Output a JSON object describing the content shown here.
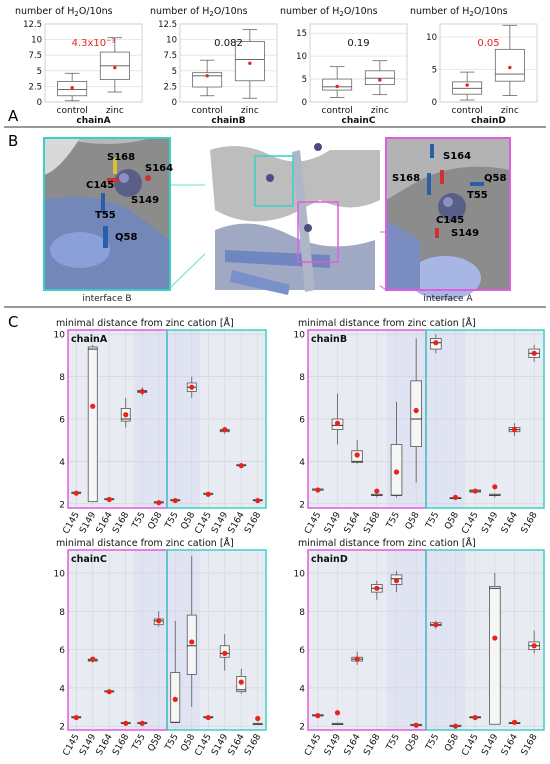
{
  "panel_labels": {
    "A": "A",
    "B": "B",
    "C": "C"
  },
  "panel_b": {
    "caption_left": "interface B",
    "caption_right": "interface A",
    "left_labels": [
      "S168",
      "S164",
      "C145",
      "S149",
      "T55",
      "Q58"
    ],
    "right_labels": [
      "S164",
      "S168",
      "Q58",
      "T55",
      "C145",
      "S149"
    ]
  },
  "chart_data": [
    {
      "type": "box",
      "panel": "A",
      "title": "number of H₂O/10ns",
      "xlabel": "chainA",
      "ylim": [
        0,
        12.5
      ],
      "yticks": [
        "0",
        "2.5",
        "5",
        "7.5",
        "10",
        "12.5"
      ],
      "ytick_values": [
        0,
        2.5,
        5,
        7.5,
        10,
        12.5
      ],
      "categories": [
        "control",
        "zinc"
      ],
      "annotation": "4.3x10⁻³",
      "annotation_color": "#e8231c",
      "boxes": [
        {
          "min": 0.2,
          "q1": 1.0,
          "median": 2.0,
          "q3": 3.3,
          "max": 4.6,
          "mean": 2.3
        },
        {
          "min": 1.6,
          "q1": 3.6,
          "median": 5.8,
          "q3": 8.0,
          "max": 10.3,
          "mean": 5.5
        }
      ]
    },
    {
      "type": "box",
      "panel": "A",
      "title": "number of H₂O/10ns",
      "xlabel": "chainB",
      "ylim": [
        0,
        12.5
      ],
      "yticks": [
        "0",
        "2.5",
        "5",
        "7.5",
        "10",
        "12.5"
      ],
      "ytick_values": [
        0,
        2.5,
        5,
        7.5,
        10,
        12.5
      ],
      "categories": [
        "control",
        "zinc"
      ],
      "annotation": "0.082",
      "annotation_color": "#111111",
      "boxes": [
        {
          "min": 1.0,
          "q1": 2.4,
          "median": 4.2,
          "q3": 4.7,
          "max": 6.7,
          "mean": 4.2
        },
        {
          "min": 0.6,
          "q1": 3.4,
          "median": 6.8,
          "q3": 9.7,
          "max": 11.6,
          "mean": 6.2
        }
      ]
    },
    {
      "type": "box",
      "panel": "A",
      "title": "number of H₂O/10ns",
      "xlabel": "chainC",
      "ylim": [
        0,
        17
      ],
      "yticks": [
        "0",
        "5",
        "10",
        "15"
      ],
      "ytick_values": [
        0,
        5,
        10,
        15
      ],
      "categories": [
        "control",
        "zinc"
      ],
      "annotation": "0.19",
      "annotation_color": "#111111",
      "boxes": [
        {
          "min": 1.0,
          "q1": 2.6,
          "median": 3.3,
          "q3": 5.0,
          "max": 7.7,
          "mean": 3.4
        },
        {
          "min": 1.6,
          "q1": 3.8,
          "median": 5.2,
          "q3": 6.8,
          "max": 9.0,
          "mean": 4.8
        }
      ]
    },
    {
      "type": "box",
      "panel": "A",
      "title": "number of H₂O/10ns",
      "xlabel": "chainD",
      "ylim": [
        0,
        12
      ],
      "yticks": [
        "0",
        "5",
        "10"
      ],
      "ytick_values": [
        0,
        5,
        10
      ],
      "categories": [
        "control",
        "zinc"
      ],
      "annotation": "0.05",
      "annotation_color": "#e8231c",
      "boxes": [
        {
          "min": 0.3,
          "q1": 1.2,
          "median": 2.1,
          "q3": 3.1,
          "max": 4.6,
          "mean": 2.6
        },
        {
          "min": 1.0,
          "q1": 3.2,
          "median": 4.3,
          "q3": 8.1,
          "max": 11.8,
          "mean": 5.3
        }
      ]
    },
    {
      "type": "box",
      "panel": "C",
      "title": "minimal distance from zinc cation [Å]",
      "chain": "chainA",
      "ylim": [
        1.8,
        10.2
      ],
      "yticks": [
        "2",
        "4",
        "6",
        "8",
        "10"
      ],
      "ytick_values": [
        2,
        4,
        6,
        8,
        10
      ],
      "categories": [
        "C145",
        "S149",
        "S164",
        "S168",
        "T55",
        "Q58",
        "T55",
        "Q58",
        "C145",
        "S149",
        "S164",
        "S168"
      ],
      "interface_B_count": 6,
      "boxes": [
        {
          "min": 2.5,
          "q1": 2.5,
          "median": 2.5,
          "q3": 2.55,
          "max": 2.6,
          "mean": 2.5
        },
        {
          "min": 2.1,
          "q1": 2.1,
          "median": 9.3,
          "q3": 9.4,
          "max": 9.5,
          "mean": 6.6
        },
        {
          "min": 2.15,
          "q1": 2.2,
          "median": 2.2,
          "q3": 2.25,
          "max": 2.3,
          "mean": 2.2
        },
        {
          "min": 5.6,
          "q1": 5.9,
          "median": 6.0,
          "q3": 6.5,
          "max": 7.0,
          "mean": 6.2
        },
        {
          "min": 7.1,
          "q1": 7.25,
          "median": 7.3,
          "q3": 7.35,
          "max": 7.5,
          "mean": 7.3
        },
        {
          "min": 2.0,
          "q1": 2.05,
          "median": 2.05,
          "q3": 2.1,
          "max": 2.1,
          "mean": 2.05
        },
        {
          "min": 2.1,
          "q1": 2.15,
          "median": 2.15,
          "q3": 2.2,
          "max": 2.2,
          "mean": 2.15
        },
        {
          "min": 7.0,
          "q1": 7.3,
          "median": 7.5,
          "q3": 7.7,
          "max": 8.0,
          "mean": 7.5
        },
        {
          "min": 2.4,
          "q1": 2.45,
          "median": 2.45,
          "q3": 2.5,
          "max": 2.5,
          "mean": 2.45
        },
        {
          "min": 5.3,
          "q1": 5.4,
          "median": 5.45,
          "q3": 5.5,
          "max": 5.6,
          "mean": 5.5
        },
        {
          "min": 3.7,
          "q1": 3.8,
          "median": 3.8,
          "q3": 3.85,
          "max": 3.9,
          "mean": 3.8
        },
        {
          "min": 2.1,
          "q1": 2.15,
          "median": 2.15,
          "q3": 2.2,
          "max": 2.2,
          "mean": 2.15
        }
      ]
    },
    {
      "type": "box",
      "panel": "C",
      "title": "minimal distance from zinc cation [Å]",
      "chain": "chainB",
      "ylim": [
        1.8,
        10.2
      ],
      "yticks": [
        "2",
        "4",
        "6",
        "8",
        "10"
      ],
      "ytick_values": [
        2,
        4,
        6,
        8,
        10
      ],
      "categories": [
        "C145",
        "S149",
        "S164",
        "S168",
        "T55",
        "Q58",
        "T55",
        "Q58",
        "C145",
        "S149",
        "S164",
        "S168"
      ],
      "interface_B_count": 6,
      "boxes": [
        {
          "min": 2.6,
          "q1": 2.65,
          "median": 2.65,
          "q3": 2.7,
          "max": 2.7,
          "mean": 2.65
        },
        {
          "min": 4.8,
          "q1": 5.5,
          "median": 5.7,
          "q3": 6.0,
          "max": 7.2,
          "mean": 5.8
        },
        {
          "min": 3.9,
          "q1": 3.95,
          "median": 4.0,
          "q3": 4.5,
          "max": 5.0,
          "mean": 4.3
        },
        {
          "min": 2.3,
          "q1": 2.4,
          "median": 2.4,
          "q3": 2.45,
          "max": 2.5,
          "mean": 2.6
        },
        {
          "min": 2.3,
          "q1": 2.4,
          "median": 2.4,
          "q3": 4.8,
          "max": 6.8,
          "mean": 3.5
        },
        {
          "min": 3.0,
          "q1": 4.7,
          "median": 6.0,
          "q3": 7.8,
          "max": 9.8,
          "mean": 6.4
        },
        {
          "min": 9.1,
          "q1": 9.3,
          "median": 9.6,
          "q3": 9.8,
          "max": 10.0,
          "mean": 9.6
        },
        {
          "min": 2.2,
          "q1": 2.25,
          "median": 2.25,
          "q3": 2.3,
          "max": 2.3,
          "mean": 2.3
        },
        {
          "min": 2.5,
          "q1": 2.55,
          "median": 2.6,
          "q3": 2.65,
          "max": 2.7,
          "mean": 2.6
        },
        {
          "min": 2.3,
          "q1": 2.4,
          "median": 2.4,
          "q3": 2.45,
          "max": 2.5,
          "mean": 2.8
        },
        {
          "min": 5.2,
          "q1": 5.4,
          "median": 5.5,
          "q3": 5.6,
          "max": 5.8,
          "mean": 5.5
        },
        {
          "min": 8.7,
          "q1": 8.9,
          "median": 9.1,
          "q3": 9.3,
          "max": 9.5,
          "mean": 9.1
        }
      ]
    },
    {
      "type": "box",
      "panel": "C",
      "title": "minimal distance from zinc cation [Å]",
      "chain": "chainC",
      "ylim": [
        1.8,
        11.2
      ],
      "yticks": [
        "2",
        "4",
        "6",
        "8",
        "10"
      ],
      "ytick_values": [
        2,
        4,
        6,
        8,
        10
      ],
      "categories": [
        "C145",
        "S149",
        "S164",
        "S168",
        "T55",
        "Q58",
        "T55",
        "Q58",
        "C145",
        "S149",
        "S164",
        "S168"
      ],
      "interface_B_count": 6,
      "boxes": [
        {
          "min": 2.4,
          "q1": 2.45,
          "median": 2.45,
          "q3": 2.5,
          "max": 2.5,
          "mean": 2.45
        },
        {
          "min": 5.3,
          "q1": 5.4,
          "median": 5.45,
          "q3": 5.5,
          "max": 5.6,
          "mean": 5.5
        },
        {
          "min": 3.7,
          "q1": 3.8,
          "median": 3.8,
          "q3": 3.85,
          "max": 3.9,
          "mean": 3.8
        },
        {
          "min": 2.1,
          "q1": 2.15,
          "median": 2.15,
          "q3": 2.2,
          "max": 2.2,
          "mean": 2.15
        },
        {
          "min": 2.1,
          "q1": 2.15,
          "median": 2.15,
          "q3": 2.2,
          "max": 2.2,
          "mean": 2.15
        },
        {
          "min": 7.2,
          "q1": 7.3,
          "median": 7.5,
          "q3": 7.6,
          "max": 8.0,
          "mean": 7.5
        },
        {
          "min": 2.2,
          "q1": 2.2,
          "median": 2.2,
          "q3": 4.8,
          "max": 7.5,
          "mean": 3.4
        },
        {
          "min": 3.0,
          "q1": 4.7,
          "median": 6.2,
          "q3": 7.8,
          "max": 10.9,
          "mean": 6.4
        },
        {
          "min": 2.4,
          "q1": 2.45,
          "median": 2.45,
          "q3": 2.5,
          "max": 2.5,
          "mean": 2.45
        },
        {
          "min": 4.9,
          "q1": 5.6,
          "median": 5.8,
          "q3": 6.2,
          "max": 6.8,
          "mean": 5.8
        },
        {
          "min": 3.7,
          "q1": 3.8,
          "median": 3.9,
          "q3": 4.6,
          "max": 5.0,
          "mean": 4.3
        },
        {
          "min": 2.1,
          "q1": 2.1,
          "median": 2.1,
          "q3": 2.15,
          "max": 2.2,
          "mean": 2.4
        }
      ]
    },
    {
      "type": "box",
      "panel": "C",
      "title": "minimal distance from zinc cation [Å]",
      "chain": "chainD",
      "ylim": [
        1.8,
        11.2
      ],
      "yticks": [
        "2",
        "4",
        "6",
        "8",
        "10"
      ],
      "ytick_values": [
        2,
        4,
        6,
        8,
        10
      ],
      "categories": [
        "C145",
        "S149",
        "S164",
        "S168",
        "T55",
        "Q58",
        "T55",
        "Q58",
        "C145",
        "S149",
        "S164",
        "S168"
      ],
      "interface_B_count": 6,
      "boxes": [
        {
          "min": 2.5,
          "q1": 2.55,
          "median": 2.55,
          "q3": 2.6,
          "max": 2.6,
          "mean": 2.55
        },
        {
          "min": 2.1,
          "q1": 2.1,
          "median": 2.1,
          "q3": 2.15,
          "max": 2.2,
          "mean": 2.7
        },
        {
          "min": 5.2,
          "q1": 5.4,
          "median": 5.5,
          "q3": 5.6,
          "max": 5.9,
          "mean": 5.5
        },
        {
          "min": 8.6,
          "q1": 9.0,
          "median": 9.2,
          "q3": 9.4,
          "max": 9.6,
          "mean": 9.2
        },
        {
          "min": 9.0,
          "q1": 9.4,
          "median": 9.7,
          "q3": 9.9,
          "max": 10.1,
          "mean": 9.6
        },
        {
          "min": 2.0,
          "q1": 2.05,
          "median": 2.05,
          "q3": 2.1,
          "max": 2.1,
          "mean": 2.05
        },
        {
          "min": 7.1,
          "q1": 7.25,
          "median": 7.3,
          "q3": 7.4,
          "max": 7.5,
          "mean": 7.3
        },
        {
          "min": 2.0,
          "q1": 2.0,
          "median": 2.0,
          "q3": 2.05,
          "max": 2.1,
          "mean": 2.0
        },
        {
          "min": 2.4,
          "q1": 2.45,
          "median": 2.45,
          "q3": 2.5,
          "max": 2.5,
          "mean": 2.45
        },
        {
          "min": 2.1,
          "q1": 2.1,
          "median": 9.2,
          "q3": 9.3,
          "max": 10.0,
          "mean": 6.6
        },
        {
          "min": 2.1,
          "q1": 2.15,
          "median": 2.15,
          "q3": 2.2,
          "max": 2.2,
          "mean": 2.2
        },
        {
          "min": 5.8,
          "q1": 6.0,
          "median": 6.2,
          "q3": 6.4,
          "max": 7.0,
          "mean": 6.2
        }
      ]
    }
  ]
}
